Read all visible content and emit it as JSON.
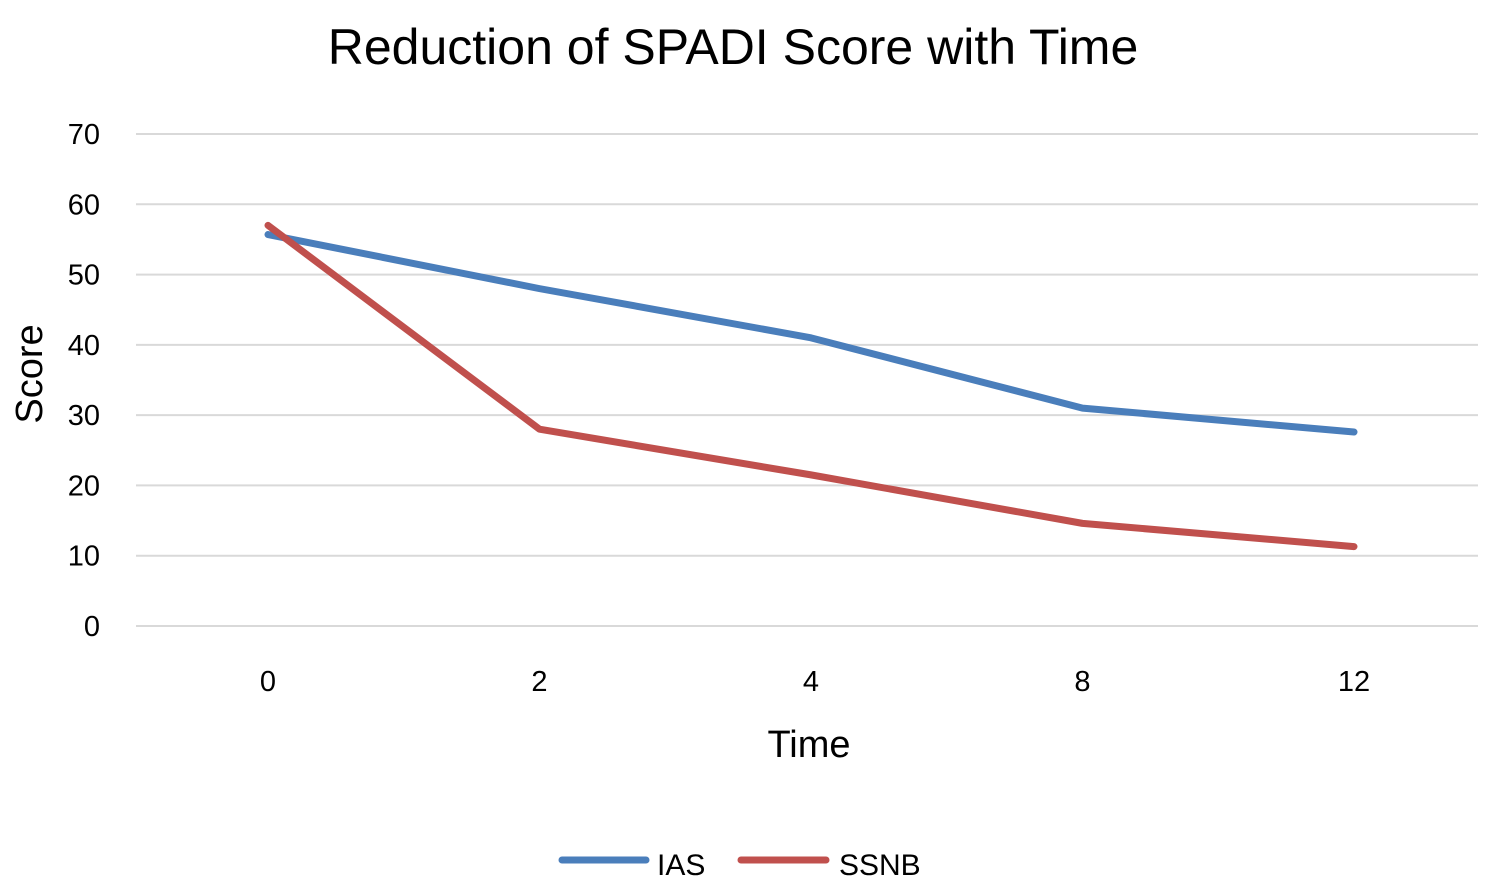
{
  "chart_data": {
    "type": "line",
    "title": "Reduction of SPADI Score with Time",
    "xlabel": "Time",
    "ylabel": "Score",
    "categories": [
      "0",
      "2",
      "4",
      "8",
      "12"
    ],
    "yticks": [
      "0",
      "10",
      "20",
      "30",
      "40",
      "50",
      "60",
      "70"
    ],
    "ylim": [
      0,
      70
    ],
    "grid": true,
    "legend_position": "bottom",
    "series": [
      {
        "name": "IAS",
        "color": "#4a7ebb",
        "values": [
          55.7,
          48.0,
          41.0,
          31.0,
          27.6
        ]
      },
      {
        "name": "SSNB",
        "color": "#c0504d",
        "values": [
          57.0,
          28.0,
          21.5,
          14.6,
          11.3
        ]
      }
    ]
  }
}
